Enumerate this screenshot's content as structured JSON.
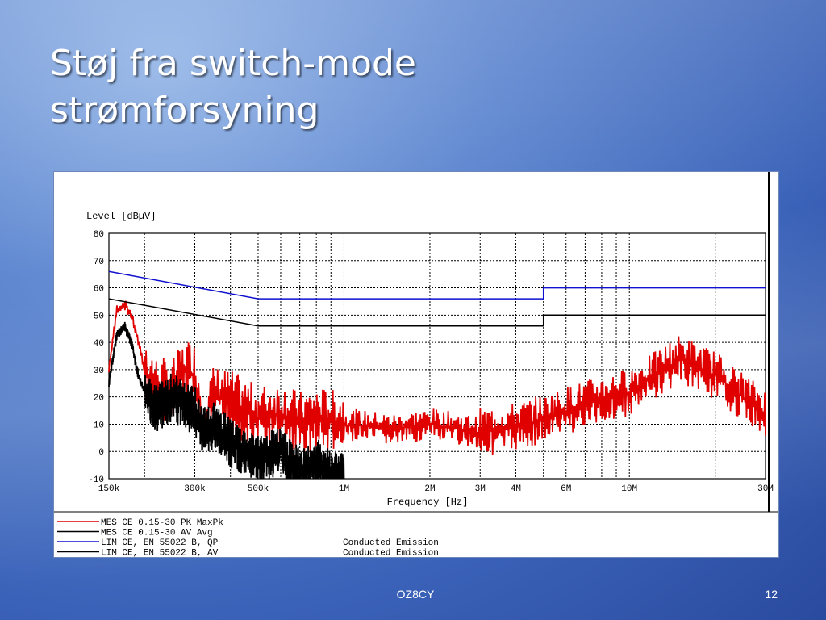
{
  "slide": {
    "title_line1": "Støj fra switch-mode",
    "title_line2": "strømforsyning",
    "footer_center": "OZ8CY",
    "page_number": "12"
  },
  "chart_data": {
    "type": "line",
    "x_scale": "log",
    "ylabel": "Level [dBµV]",
    "xlabel": "Frequency [Hz]",
    "ylim": [
      -10,
      80
    ],
    "xlim": [
      150000,
      30000000
    ],
    "y_ticks": [
      -10,
      0,
      10,
      20,
      30,
      40,
      50,
      60,
      70,
      80
    ],
    "x_tick_values": [
      150000,
      300000,
      500000,
      1000000,
      2000000,
      3000000,
      4000000,
      6000000,
      10000000,
      30000000
    ],
    "x_tick_labels": [
      "150k",
      "300k",
      "500k",
      "1M",
      "2M",
      "3M",
      "4M",
      "6M",
      "10M",
      "30M"
    ],
    "grid": true,
    "legend_placement": "bottom",
    "series": [
      {
        "name": "MES CE 0.15-30 PK MaxPk",
        "color": "#e00000",
        "x": [
          150000,
          160000,
          170000,
          180000,
          190000,
          200000,
          220000,
          250000,
          280000,
          300000,
          320000,
          350000,
          400000,
          450000,
          500000,
          600000,
          700000,
          800000,
          1000000,
          1500000,
          2000000,
          3000000,
          4000000,
          5000000,
          6000000,
          8000000,
          10000000,
          12000000,
          15000000,
          20000000,
          25000000,
          30000000
        ],
        "y": [
          30,
          52,
          54,
          50,
          40,
          30,
          23,
          22,
          30,
          28,
          10,
          20,
          18,
          15,
          12,
          14,
          10,
          12,
          10,
          8,
          10,
          7,
          9,
          12,
          15,
          19,
          22,
          27,
          34,
          28,
          20,
          14
        ]
      },
      {
        "name": "MES CE 0.15-30 AV Avg",
        "color": "#000000",
        "x": [
          150000,
          160000,
          170000,
          180000,
          190000,
          200000,
          220000,
          250000,
          280000,
          300000,
          320000,
          350000,
          400000,
          450000,
          500000,
          600000,
          700000,
          800000,
          900000,
          1000000
        ],
        "y": [
          25,
          43,
          46,
          40,
          28,
          22,
          16,
          20,
          16,
          15,
          7,
          10,
          3,
          0,
          -3,
          0,
          -8,
          -4,
          -8,
          -9
        ]
      },
      {
        "name": "LIM CE, EN 55022 B, QP",
        "note": "Conducted Emission",
        "color": "#1010d0",
        "x": [
          150000,
          500000,
          5000000,
          5000000,
          30000000
        ],
        "y": [
          66,
          56,
          56,
          60,
          60
        ]
      },
      {
        "name": "LIM CE, EN 55022 B, AV",
        "note": "Conducted Emission",
        "color": "#000000",
        "x": [
          150000,
          500000,
          5000000,
          5000000,
          30000000
        ],
        "y": [
          56,
          46,
          46,
          50,
          50
        ]
      }
    ]
  }
}
